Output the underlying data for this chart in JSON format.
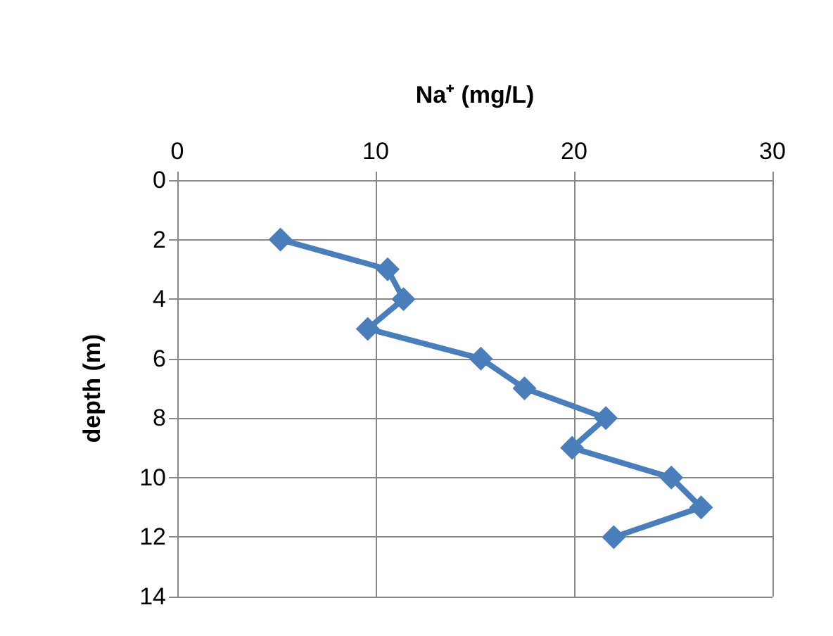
{
  "chart_data": {
    "type": "line",
    "xlabel": "Na⁺ (mg/L)",
    "ylabel": "depth (m)",
    "x": [
      5.2,
      10.6,
      11.4,
      9.6,
      15.3,
      17.5,
      21.6,
      19.9,
      24.9,
      26.4,
      22.0
    ],
    "values": [
      2,
      3,
      4,
      5,
      6,
      7,
      8,
      9,
      10,
      11,
      12
    ],
    "color": "#4a7ebb",
    "marker": "diamond",
    "line_style": "solid",
    "xlim": [
      0,
      30
    ],
    "xticks": [
      0,
      10,
      20,
      30
    ],
    "ylim": [
      14,
      0
    ],
    "yticks": [
      0,
      2,
      4,
      6,
      8,
      10,
      12,
      14
    ],
    "grid": true
  }
}
